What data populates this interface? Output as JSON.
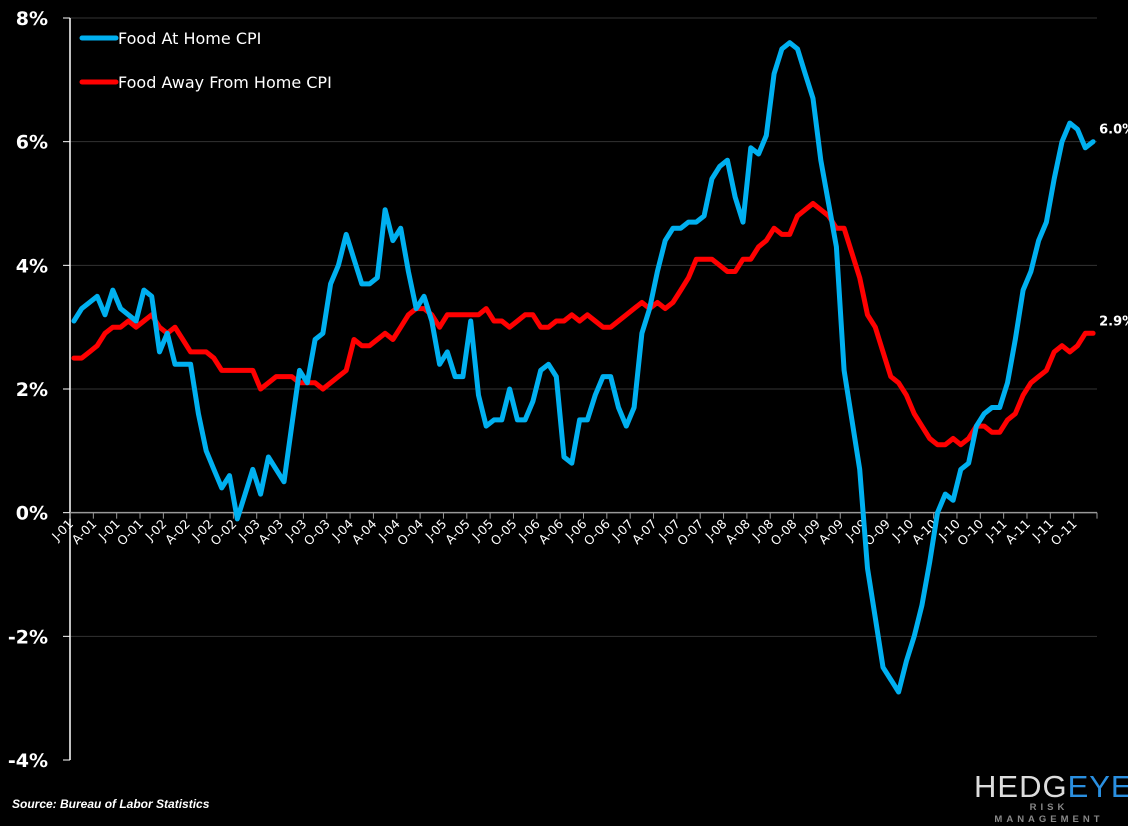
{
  "chart_data": {
    "type": "line",
    "title": "",
    "xlabel": "",
    "ylabel": "",
    "ylim": [
      -4,
      8
    ],
    "y_ticks": [
      "8%",
      "6%",
      "4%",
      "2%",
      "0%",
      "-2%",
      "-4%"
    ],
    "y_tick_values": [
      8,
      6,
      4,
      2,
      0,
      -2,
      -4
    ],
    "grid": "horizontal",
    "legend_position": "top-left",
    "x_tick_labels": [
      "J-01",
      "A-01",
      "J-01",
      "O-01",
      "J-02",
      "A-02",
      "J-02",
      "O-02",
      "J-03",
      "A-03",
      "J-03",
      "O-03",
      "J-04",
      "A-04",
      "J-04",
      "O-04",
      "J-05",
      "A-05",
      "J-05",
      "O-05",
      "J-06",
      "A-06",
      "J-06",
      "O-06",
      "J-07",
      "A-07",
      "J-07",
      "O-07",
      "J-08",
      "A-08",
      "J-08",
      "O-08",
      "J-09",
      "A-09",
      "J-09",
      "O-09",
      "J-10",
      "A-10",
      "J-10",
      "O-10",
      "J-11",
      "A-11",
      "J-11",
      "O-11"
    ],
    "x_range": [
      "Jan 2001",
      "Dec 2011"
    ],
    "series": [
      {
        "name": "Food At Home CPI",
        "color": "#00b0f0",
        "end_label": "6.0%",
        "values": [
          3.1,
          3.3,
          3.4,
          3.5,
          3.2,
          3.6,
          3.3,
          3.2,
          3.1,
          3.6,
          3.5,
          2.6,
          2.9,
          2.4,
          2.4,
          2.4,
          1.6,
          1.0,
          0.7,
          0.4,
          0.6,
          -0.1,
          0.3,
          0.7,
          0.3,
          0.9,
          0.7,
          0.5,
          1.4,
          2.3,
          2.1,
          2.8,
          2.9,
          3.7,
          4.0,
          4.5,
          4.1,
          3.7,
          3.7,
          3.8,
          4.9,
          4.4,
          4.6,
          3.9,
          3.3,
          3.5,
          3.1,
          2.4,
          2.6,
          2.2,
          2.2,
          3.1,
          1.9,
          1.4,
          1.5,
          1.5,
          2.0,
          1.5,
          1.5,
          1.8,
          2.3,
          2.4,
          2.2,
          0.9,
          0.8,
          1.5,
          1.5,
          1.9,
          2.2,
          2.2,
          1.7,
          1.4,
          1.7,
          2.9,
          3.3,
          3.9,
          4.4,
          4.6,
          4.6,
          4.7,
          4.7,
          4.8,
          5.4,
          5.6,
          5.7,
          5.1,
          4.7,
          5.9,
          5.8,
          6.1,
          7.1,
          7.5,
          7.6,
          7.5,
          7.1,
          6.7,
          5.7,
          5.0,
          4.3,
          2.3,
          1.5,
          0.7,
          -0.9,
          -1.7,
          -2.5,
          -2.7,
          -2.9,
          -2.4,
          -2.0,
          -1.5,
          -0.8,
          0.0,
          0.3,
          0.2,
          0.7,
          0.8,
          1.4,
          1.6,
          1.7,
          1.7,
          2.1,
          2.8,
          3.6,
          3.9,
          4.4,
          4.7,
          5.4,
          6.0,
          6.3,
          6.2,
          5.9,
          6.0
        ]
      },
      {
        "name": "Food Away From Home CPI",
        "color": "#ff0000",
        "end_label": "2.9%",
        "values": [
          2.5,
          2.5,
          2.6,
          2.7,
          2.9,
          3.0,
          3.0,
          3.1,
          3.0,
          3.1,
          3.2,
          3.0,
          2.9,
          3.0,
          2.8,
          2.6,
          2.6,
          2.6,
          2.5,
          2.3,
          2.3,
          2.3,
          2.3,
          2.3,
          2.0,
          2.1,
          2.2,
          2.2,
          2.2,
          2.1,
          2.1,
          2.1,
          2.0,
          2.1,
          2.2,
          2.3,
          2.8,
          2.7,
          2.7,
          2.8,
          2.9,
          2.8,
          3.0,
          3.2,
          3.3,
          3.3,
          3.2,
          3.0,
          3.2,
          3.2,
          3.2,
          3.2,
          3.2,
          3.3,
          3.1,
          3.1,
          3.0,
          3.1,
          3.2,
          3.2,
          3.0,
          3.0,
          3.1,
          3.1,
          3.2,
          3.1,
          3.2,
          3.1,
          3.0,
          3.0,
          3.1,
          3.2,
          3.3,
          3.4,
          3.3,
          3.4,
          3.3,
          3.4,
          3.6,
          3.8,
          4.1,
          4.1,
          4.1,
          4.0,
          3.9,
          3.9,
          4.1,
          4.1,
          4.3,
          4.4,
          4.6,
          4.5,
          4.5,
          4.8,
          4.9,
          5.0,
          4.9,
          4.8,
          4.6,
          4.6,
          4.2,
          3.8,
          3.2,
          3.0,
          2.6,
          2.2,
          2.1,
          1.9,
          1.6,
          1.4,
          1.2,
          1.1,
          1.1,
          1.2,
          1.1,
          1.2,
          1.4,
          1.4,
          1.3,
          1.3,
          1.5,
          1.6,
          1.9,
          2.1,
          2.2,
          2.3,
          2.6,
          2.7,
          2.6,
          2.7,
          2.9,
          2.9
        ]
      }
    ]
  },
  "footer": {
    "source": "Source: Bureau of Labor Statistics",
    "logo_text": "HEDGEYE",
    "logo_subtext": "RISK MANAGEMENT"
  }
}
